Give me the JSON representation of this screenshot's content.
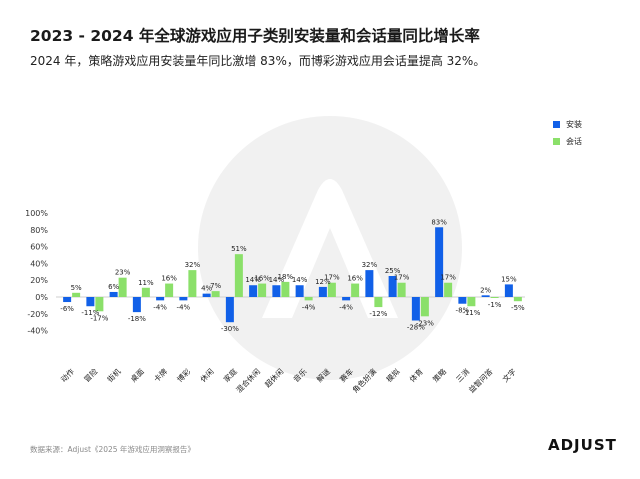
{
  "title": "2023 - 2024 年全球游戏应用子类别安装量和会话量同比增长率",
  "subtitle": "2024 年，策略游戏应用安装量年同比激增 83%，而博彩游戏应用会话量提高 32%。",
  "source": "数据来源：Adjust《2025 年游戏应用洞察报告》",
  "logo": "ADJUST",
  "colors": {
    "installs": "#1160e8",
    "sessions": "#8be06a",
    "axis": "#cfcfcf",
    "watermark": "#f1f1f1"
  },
  "chart_data": {
    "type": "bar",
    "categories": [
      "动作",
      "冒险",
      "街机",
      "桌面",
      "卡牌",
      "博彩",
      "休闲",
      "家庭",
      "混合休闲",
      "超休闲",
      "音乐",
      "解谜",
      "赛车",
      "角色扮演",
      "模拟",
      "体育",
      "策略",
      "三消",
      "益智问答",
      "文字"
    ],
    "series": [
      {
        "name": "安装",
        "values": [
          -6,
          -11,
          6,
          -18,
          -4,
          -4,
          4,
          -30,
          14,
          14,
          14,
          12,
          -4,
          32,
          25,
          -28,
          83,
          -8,
          2,
          15
        ]
      },
      {
        "name": "会话",
        "values": [
          5,
          -17,
          23,
          11,
          16,
          32,
          7,
          51,
          16,
          18,
          -4,
          17,
          16,
          -12,
          17,
          -23,
          17,
          -11,
          -1,
          -5
        ]
      }
    ],
    "value_labels": {
      "installs": [
        "-6%",
        "-11%",
        "6%",
        "-18%",
        "-4%",
        "-4%",
        "4%",
        "-30%",
        "14%",
        "14%",
        "14%",
        "12%",
        "-4%",
        "32%",
        "25%",
        "-28%",
        "83%",
        "-8%",
        "2%",
        "15%"
      ],
      "sessions": [
        "5%",
        "-17%",
        "23%",
        "11%",
        "16%",
        "32%",
        "7%",
        "51%",
        "16%",
        "18%",
        "-4%",
        "17%",
        "16%",
        "-12%",
        "17%",
        "-23%",
        "17%",
        "-11%",
        "-1%",
        "-5%"
      ]
    },
    "yticks": [
      "100%",
      "80%",
      "60%",
      "40%",
      "20%",
      "0%",
      "-20%",
      "-40%"
    ],
    "ytick_values": [
      100,
      80,
      60,
      40,
      20,
      0,
      -20,
      -40
    ],
    "ylim": [
      -40,
      100
    ],
    "legend_position": "top-right",
    "grid": false
  }
}
